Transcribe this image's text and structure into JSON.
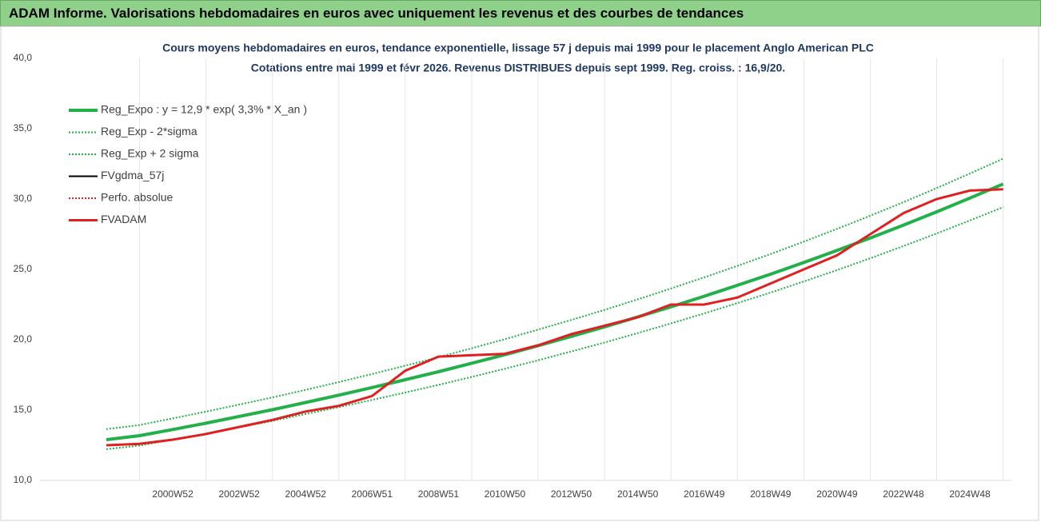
{
  "header": {
    "title": "ADAM Informe. Valorisations hebdomadaires en euros avec uniquement les revenus et des courbes de tendances"
  },
  "chart_data": {
    "type": "line",
    "title": "Cours moyens hebdomadaires en euros, tendance exponentielle, lissage 57 j depuis mai 1999 pour le placement Anglo American PLC",
    "subtitle": "Cotations entre mai 1999 et févr 2026. Revenus DISTRIBUES depuis sept 1999. Reg. croiss. : 16,9/20.",
    "categories": [
      null,
      null,
      "2000W52",
      null,
      "2002W52",
      null,
      "2004W52",
      null,
      "2006W51",
      null,
      "2008W51",
      null,
      "2010W50",
      null,
      "2012W50",
      null,
      "2014W50",
      null,
      "2016W49",
      null,
      "2018W49",
      null,
      "2020W49",
      null,
      "2022W48",
      null,
      "2024W48",
      null
    ],
    "ylim": [
      10,
      40
    ],
    "yticks": [
      {
        "value": 10,
        "label": "10,0"
      },
      {
        "value": 15,
        "label": "15,0"
      },
      {
        "value": 20,
        "label": "20,0"
      },
      {
        "value": 25,
        "label": "25,0"
      },
      {
        "value": 30,
        "label": "30,0"
      },
      {
        "value": 35,
        "label": "35,0"
      },
      {
        "value": 40,
        "label": "40,0"
      }
    ],
    "grid": "vertical",
    "legend": "top-left",
    "series": [
      {
        "name": "Reg_Expo : y = 12,9 * exp( 3,3% *  X_an )",
        "color": "#22b04b",
        "style": "thick",
        "values": [
          12.9,
          13.18,
          13.62,
          14.07,
          14.55,
          15.03,
          15.54,
          16.06,
          16.6,
          17.16,
          17.73,
          18.33,
          18.94,
          19.58,
          20.24,
          20.91,
          21.62,
          22.34,
          23.09,
          23.87,
          24.66,
          25.49,
          26.35,
          27.23,
          28.15,
          29.09,
          30.07,
          31.07
        ]
      },
      {
        "name": "Reg_Exp - 2*sigma",
        "color": "#22b04b",
        "style": "dotted",
        "values": [
          12.22,
          12.48,
          12.9,
          13.32,
          13.78,
          14.23,
          14.72,
          15.21,
          15.72,
          16.25,
          16.79,
          17.36,
          17.94,
          18.54,
          19.17,
          19.8,
          20.47,
          21.16,
          21.87,
          22.6,
          23.35,
          24.14,
          24.95,
          25.79,
          26.66,
          27.55,
          28.48,
          29.42
        ]
      },
      {
        "name": "Reg_Exp + 2 sigma",
        "color": "#22b04b",
        "style": "dotted",
        "values": [
          13.65,
          13.94,
          14.41,
          14.89,
          15.39,
          15.9,
          16.44,
          16.99,
          17.56,
          18.16,
          18.76,
          19.39,
          20.04,
          20.72,
          21.41,
          22.12,
          22.87,
          23.64,
          24.43,
          25.25,
          26.09,
          26.97,
          27.88,
          28.81,
          29.78,
          30.78,
          31.81,
          32.87
        ]
      },
      {
        "name": "FVgdma_57j",
        "color": "#000000",
        "style": "solid",
        "values": [
          12.5,
          12.6,
          12.9,
          13.3,
          13.8,
          14.3,
          14.9,
          15.3,
          16.0,
          17.8,
          18.8,
          18.9,
          19.0,
          19.6,
          20.4,
          21.0,
          21.6,
          22.5,
          22.5,
          23.0,
          24.0,
          25.0,
          26.0,
          27.5,
          29.0,
          30.0,
          30.6,
          30.7
        ]
      },
      {
        "name": "Perfo. absolue",
        "color": "#e02020",
        "style": "dotted",
        "values": [
          12.5,
          12.6,
          12.9,
          13.3,
          13.8,
          14.3,
          14.9,
          15.3,
          16.0,
          17.8,
          18.8,
          18.9,
          19.0,
          19.6,
          20.4,
          21.0,
          21.6,
          22.5,
          22.5,
          23.0,
          24.0,
          25.0,
          26.0,
          27.5,
          29.0,
          30.0,
          30.6,
          30.7
        ]
      },
      {
        "name": "FVADAM",
        "color": "#e02020",
        "style": "bold",
        "values": [
          12.5,
          12.6,
          12.9,
          13.3,
          13.8,
          14.3,
          14.9,
          15.3,
          16.0,
          17.8,
          18.8,
          18.9,
          19.0,
          19.6,
          20.4,
          21.0,
          21.6,
          22.5,
          22.5,
          23.0,
          24.0,
          25.0,
          26.0,
          27.5,
          29.0,
          30.0,
          30.6,
          30.7
        ]
      }
    ]
  }
}
